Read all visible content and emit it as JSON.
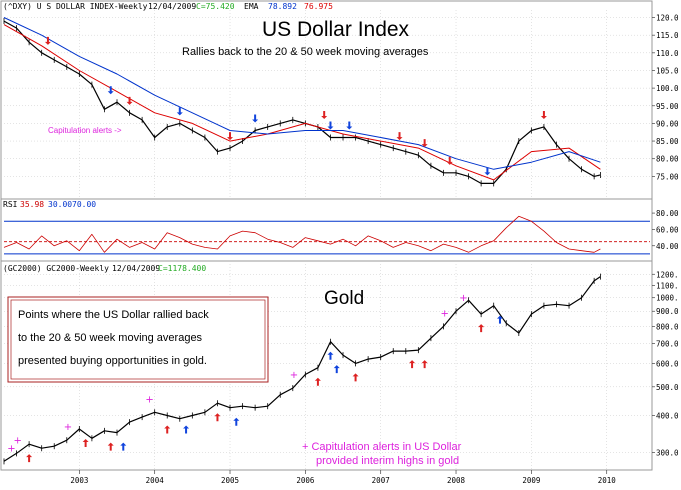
{
  "colors": {
    "price": "#000000",
    "ema20": "#dd0000",
    "ema50": "#0033cc",
    "rsi": "#cc0000",
    "magenta": "#dd22dd",
    "up_arrow": "#dd2222",
    "down_arrow": "#1144dd",
    "legend_border": "#aa2222",
    "grid": "#c8c8c8"
  },
  "header_dxy": {
    "symbol": "(^DXY) U S DOLLAR INDEX-Weekly",
    "date": "12/04/2009",
    "close": "C=75.420",
    "ema_label": "EMA",
    "ema50_value": "78.892",
    "ema20_value": "76.975"
  },
  "header_rsi": {
    "label": "RSI",
    "value": "35.98",
    "level_low": "30.00",
    "level_high": "70.00"
  },
  "header_gold": {
    "symbol": "(GC2000) GC2000-Weekly",
    "date": "12/04/2009",
    "close": "C=1178.400"
  },
  "annotations": {
    "title_dollar": "US Dollar Index",
    "subtitle_dollar": "Rallies back to the 20 & 50 week moving averages",
    "capitulation_label": "Capitulation alerts ->",
    "title_gold": "Gold",
    "gold_box_line1": "Points where the US Dollar rallied back",
    "gold_box_line2": "to the 20 & 50 week moving averages",
    "gold_box_line3": "presented buying opportunities in gold.",
    "gold_note_line1": "+ Capitulation alerts in US Dollar",
    "gold_note_line2": "provided interim highs in gold",
    "plus_glyph": "+"
  },
  "chart_data": [
    {
      "id": "dxy",
      "type": "line",
      "title": "US Dollar Index",
      "x_type": "date",
      "x_ticks": [
        "2003",
        "2004",
        "2005",
        "2006",
        "2007",
        "2008",
        "2009",
        "2010"
      ],
      "y_ticks": [
        "75.00",
        "80.00",
        "85.00",
        "90.00",
        "95.00",
        "100.0",
        "105.0",
        "110.0",
        "115.0",
        "120.0"
      ],
      "ylim": [
        70,
        121
      ],
      "grid": true,
      "series": [
        {
          "name": "price",
          "x": [
            "2002-01",
            "2002-03",
            "2002-05",
            "2002-07",
            "2002-09",
            "2002-11",
            "2003-01",
            "2003-03",
            "2003-05",
            "2003-07",
            "2003-09",
            "2003-11",
            "2004-01",
            "2004-03",
            "2004-05",
            "2004-07",
            "2004-09",
            "2004-11",
            "2005-01",
            "2005-03",
            "2005-05",
            "2005-07",
            "2005-09",
            "2005-11",
            "2006-01",
            "2006-03",
            "2006-05",
            "2006-07",
            "2006-09",
            "2006-11",
            "2007-01",
            "2007-03",
            "2007-05",
            "2007-07",
            "2007-09",
            "2007-11",
            "2008-01",
            "2008-03",
            "2008-05",
            "2008-07",
            "2008-09",
            "2008-11",
            "2009-01",
            "2009-03",
            "2009-05",
            "2009-07",
            "2009-09",
            "2009-11",
            "2009-12"
          ],
          "values": [
            119,
            117,
            113,
            110,
            108,
            106,
            104,
            101,
            94,
            96,
            93,
            91,
            86,
            89,
            90,
            88,
            86,
            82,
            83,
            85,
            88,
            89,
            90,
            91,
            90,
            89,
            86,
            86,
            86,
            85,
            84,
            83,
            82,
            81,
            78,
            76,
            76,
            75,
            73,
            73,
            77,
            85,
            88,
            89,
            84,
            80,
            77,
            75,
            75.4
          ]
        },
        {
          "name": "EMA 20",
          "x": [
            "2002-01",
            "2002-07",
            "2003-01",
            "2003-07",
            "2004-01",
            "2004-07",
            "2005-01",
            "2005-07",
            "2006-01",
            "2006-07",
            "2007-01",
            "2007-07",
            "2008-01",
            "2008-07",
            "2009-01",
            "2009-07",
            "2009-12"
          ],
          "values": [
            118,
            112,
            105,
            99,
            93,
            90,
            85,
            87,
            90,
            87,
            85,
            83,
            78,
            74,
            82,
            83,
            77
          ]
        },
        {
          "name": "EMA 50",
          "x": [
            "2002-01",
            "2002-07",
            "2003-01",
            "2003-07",
            "2004-01",
            "2004-07",
            "2005-01",
            "2005-07",
            "2006-01",
            "2006-07",
            "2007-01",
            "2007-07",
            "2008-01",
            "2008-07",
            "2009-01",
            "2009-07",
            "2009-12"
          ],
          "values": [
            120,
            115,
            109,
            104,
            98,
            93,
            88,
            87,
            88,
            88,
            86,
            84,
            80,
            77,
            79,
            82,
            79
          ]
        }
      ],
      "rally_arrows": [
        {
          "x": "2002-08",
          "dir": "down",
          "color": "red"
        },
        {
          "x": "2003-06",
          "dir": "down",
          "color": "blue"
        },
        {
          "x": "2003-09",
          "dir": "down",
          "color": "red"
        },
        {
          "x": "2004-05",
          "dir": "down",
          "color": "blue"
        },
        {
          "x": "2005-01",
          "dir": "down",
          "color": "red"
        },
        {
          "x": "2005-05",
          "dir": "down",
          "color": "blue"
        },
        {
          "x": "2006-05",
          "dir": "down",
          "color": "blue"
        },
        {
          "x": "2006-08",
          "dir": "down",
          "color": "blue"
        },
        {
          "x": "2006-04",
          "dir": "down",
          "color": "red"
        },
        {
          "x": "2007-04",
          "dir": "down",
          "color": "red"
        },
        {
          "x": "2007-08",
          "dir": "down",
          "color": "red"
        },
        {
          "x": "2007-12",
          "dir": "down",
          "color": "red"
        },
        {
          "x": "2008-06",
          "dir": "down",
          "color": "blue"
        },
        {
          "x": "2009-03",
          "dir": "down",
          "color": "red"
        }
      ]
    },
    {
      "id": "rsi",
      "type": "line",
      "title": "RSI",
      "x_type": "date",
      "y_ticks": [
        "40.00",
        "60.00",
        "80.00"
      ],
      "ylim": [
        25,
        85
      ],
      "levels": [
        30,
        70
      ],
      "mid_level": 45,
      "series": [
        {
          "name": "RSI",
          "x": [
            "2002-01",
            "2002-03",
            "2002-05",
            "2002-07",
            "2002-09",
            "2002-11",
            "2003-01",
            "2003-03",
            "2003-05",
            "2003-07",
            "2003-09",
            "2003-11",
            "2004-01",
            "2004-03",
            "2004-05",
            "2004-07",
            "2004-09",
            "2004-11",
            "2005-01",
            "2005-03",
            "2005-05",
            "2005-07",
            "2005-09",
            "2005-11",
            "2006-01",
            "2006-03",
            "2006-05",
            "2006-07",
            "2006-09",
            "2006-11",
            "2007-01",
            "2007-03",
            "2007-05",
            "2007-07",
            "2007-09",
            "2007-11",
            "2008-01",
            "2008-03",
            "2008-05",
            "2008-07",
            "2008-09",
            "2008-11",
            "2009-01",
            "2009-03",
            "2009-05",
            "2009-07",
            "2009-09",
            "2009-11",
            "2009-12"
          ],
          "values": [
            38,
            44,
            36,
            52,
            40,
            46,
            34,
            54,
            32,
            48,
            38,
            44,
            36,
            56,
            50,
            42,
            38,
            36,
            52,
            58,
            56,
            48,
            44,
            38,
            50,
            46,
            42,
            48,
            40,
            52,
            46,
            38,
            44,
            40,
            34,
            42,
            38,
            32,
            40,
            46,
            62,
            76,
            70,
            58,
            44,
            36,
            34,
            32,
            35.98
          ]
        }
      ]
    },
    {
      "id": "gold",
      "type": "line",
      "title": "Gold",
      "x_type": "date",
      "x_ticks": [
        "2003",
        "2004",
        "2005",
        "2006",
        "2007",
        "2008",
        "2009",
        "2010"
      ],
      "y_ticks": [
        "300.0",
        "400.0",
        "500.0",
        "600.0",
        "700.0",
        "800.0",
        "900.0",
        "1000.",
        "1100.",
        "1200."
      ],
      "ylim": [
        270,
        1260
      ],
      "scale": "log",
      "grid": true,
      "series": [
        {
          "name": "price",
          "x": [
            "2002-01",
            "2002-03",
            "2002-05",
            "2002-07",
            "2002-09",
            "2002-11",
            "2003-01",
            "2003-03",
            "2003-05",
            "2003-07",
            "2003-09",
            "2003-11",
            "2004-01",
            "2004-03",
            "2004-05",
            "2004-07",
            "2004-09",
            "2004-11",
            "2005-01",
            "2005-03",
            "2005-05",
            "2005-07",
            "2005-09",
            "2005-11",
            "2006-01",
            "2006-03",
            "2006-05",
            "2006-07",
            "2006-09",
            "2006-11",
            "2007-01",
            "2007-03",
            "2007-05",
            "2007-07",
            "2007-09",
            "2007-11",
            "2008-01",
            "2008-03",
            "2008-05",
            "2008-07",
            "2008-09",
            "2008-11",
            "2009-01",
            "2009-03",
            "2009-05",
            "2009-07",
            "2009-09",
            "2009-11",
            "2009-12"
          ],
          "values": [
            280,
            298,
            320,
            310,
            315,
            330,
            360,
            335,
            355,
            350,
            380,
            395,
            410,
            400,
            390,
            400,
            410,
            440,
            425,
            430,
            425,
            430,
            470,
            495,
            550,
            580,
            710,
            640,
            600,
            620,
            630,
            660,
            660,
            665,
            730,
            800,
            900,
            980,
            880,
            940,
            820,
            760,
            880,
            940,
            950,
            940,
            1000,
            1140,
            1178.4
          ]
        }
      ],
      "plus_marks": [
        "2002-02",
        "2002-03",
        "2002-11",
        "2003-12",
        "2005-11",
        "2007-11",
        "2008-02"
      ],
      "up_arrows": [
        {
          "x": "2002-05",
          "color": "red"
        },
        {
          "x": "2003-02",
          "color": "red"
        },
        {
          "x": "2003-06",
          "color": "red"
        },
        {
          "x": "2003-08",
          "color": "blue"
        },
        {
          "x": "2004-03",
          "color": "red"
        },
        {
          "x": "2004-06",
          "color": "blue"
        },
        {
          "x": "2004-11",
          "color": "red"
        },
        {
          "x": "2005-02",
          "color": "blue"
        },
        {
          "x": "2006-03",
          "color": "red"
        },
        {
          "x": "2006-05",
          "color": "blue"
        },
        {
          "x": "2006-06",
          "color": "blue"
        },
        {
          "x": "2006-09",
          "color": "red"
        },
        {
          "x": "2007-06",
          "color": "red"
        },
        {
          "x": "2007-08",
          "color": "red"
        },
        {
          "x": "2008-05",
          "color": "red"
        },
        {
          "x": "2008-08",
          "color": "blue"
        }
      ]
    }
  ]
}
